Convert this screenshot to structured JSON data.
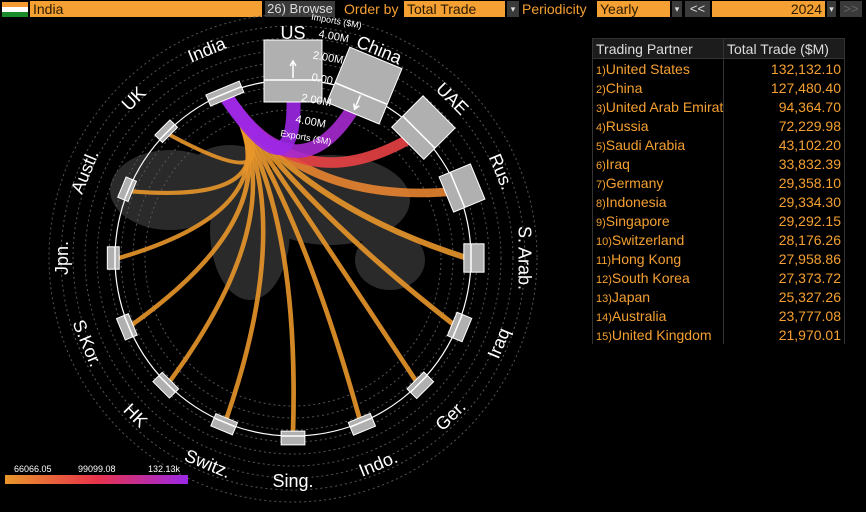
{
  "toolbar": {
    "country": "India",
    "browse_label": "26) Browse",
    "order_by_label": "Order by",
    "order_by_value": "Total Trade",
    "periodicity_label": "Periodicity",
    "periodicity_value": "Yearly",
    "prev_label": "<<",
    "year": "2024",
    "next_label": ">>"
  },
  "colors": {
    "accent": "#f5a032",
    "low": "#e8962a",
    "mid": "#e8334a",
    "high": "#9b27e6"
  },
  "table": {
    "headers": [
      "Trading Partner",
      "Total Trade ($M)"
    ],
    "rows": [
      {
        "idx": "1)",
        "name": "United States",
        "value": "132,132.10",
        "num": 132132.1,
        "short": "US"
      },
      {
        "idx": "2)",
        "name": "China",
        "value": "127,480.40",
        "num": 127480.4,
        "short": "China"
      },
      {
        "idx": "3)",
        "name": "United Arab Emirat",
        "value": "94,364.70",
        "num": 94364.7,
        "short": "UAE"
      },
      {
        "idx": "4)",
        "name": "Russia",
        "value": "72,229.98",
        "num": 72229.98,
        "short": "Rus."
      },
      {
        "idx": "5)",
        "name": "Saudi Arabia",
        "value": "43,102.20",
        "num": 43102.2,
        "short": "S. Arab."
      },
      {
        "idx": "6)",
        "name": "Iraq",
        "value": "33,832.39",
        "num": 33832.39,
        "short": "Iraq"
      },
      {
        "idx": "7)",
        "name": "Germany",
        "value": "29,358.10",
        "num": 29358.1,
        "short": "Ger."
      },
      {
        "idx": "8)",
        "name": "Indonesia",
        "value": "29,334.30",
        "num": 29334.3,
        "short": "Indo."
      },
      {
        "idx": "9)",
        "name": "Singapore",
        "value": "29,292.15",
        "num": 29292.15,
        "short": "Sing."
      },
      {
        "idx": "10)",
        "name": "Switzerland",
        "value": "28,176.26",
        "num": 28176.26,
        "short": "Switz."
      },
      {
        "idx": "11)",
        "name": "Hong Kong",
        "value": "27,958.86",
        "num": 27958.86,
        "short": "HK"
      },
      {
        "idx": "12)",
        "name": "South Korea",
        "value": "27,373.72",
        "num": 27373.72,
        "short": "S.Kor."
      },
      {
        "idx": "13)",
        "name": "Japan",
        "value": "25,327.26",
        "num": 25327.26,
        "short": "Jpn."
      },
      {
        "idx": "14)",
        "name": "Australia",
        "value": "23,777.08",
        "num": 23777.08,
        "short": "Austl."
      },
      {
        "idx": "15)",
        "name": "United Kingdom",
        "value": "21,970.01",
        "num": 21970.01,
        "short": "UK"
      }
    ]
  },
  "chart": {
    "origin_label": "India",
    "scale_labels": [
      "Imports ($M)",
      "4.00M",
      "2.00M",
      "0.00",
      "2.00M",
      "4.00M",
      "Exports ($M)"
    ],
    "legend": {
      "min": "66066.05",
      "mid": "99099.08",
      "max": "132.13k",
      "min_value": 66066.05,
      "max_value": 132132.1
    }
  }
}
